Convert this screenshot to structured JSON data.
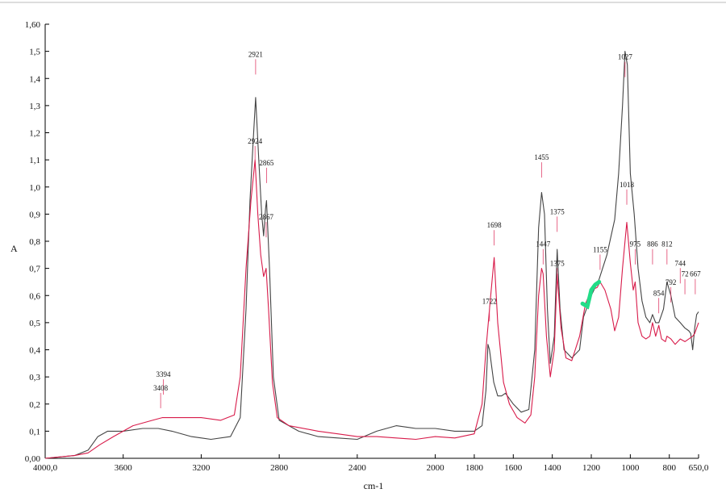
{
  "chart_data": {
    "type": "line",
    "title": "",
    "xlabel": "cm-1",
    "ylabel": "A",
    "xlim": [
      4000,
      650
    ],
    "ylim": [
      0,
      1.6
    ],
    "x_ticks": [
      {
        "value": 4000,
        "label": "4000,0"
      },
      {
        "value": 3600,
        "label": "3600"
      },
      {
        "value": 3200,
        "label": "3200"
      },
      {
        "value": 2800,
        "label": "2800"
      },
      {
        "value": 2400,
        "label": "2400"
      },
      {
        "value": 2000,
        "label": "2000"
      },
      {
        "value": 1800,
        "label": "1800"
      },
      {
        "value": 1600,
        "label": "1600"
      },
      {
        "value": 1400,
        "label": "1400"
      },
      {
        "value": 1200,
        "label": "1200"
      },
      {
        "value": 1000,
        "label": "1000"
      },
      {
        "value": 800,
        "label": "800"
      },
      {
        "value": 650,
        "label": "650,0"
      }
    ],
    "y_ticks": [
      {
        "value": 0.0,
        "label": "0,00"
      },
      {
        "value": 0.1,
        "label": "0,1"
      },
      {
        "value": 0.2,
        "label": "0,2"
      },
      {
        "value": 0.3,
        "label": "0,3"
      },
      {
        "value": 0.4,
        "label": "0,4"
      },
      {
        "value": 0.5,
        "label": "0,5"
      },
      {
        "value": 0.6,
        "label": "0,6"
      },
      {
        "value": 0.7,
        "label": "0,7"
      },
      {
        "value": 0.8,
        "label": "0,8"
      },
      {
        "value": 0.9,
        "label": "0,9"
      },
      {
        "value": 1.0,
        "label": "1,0"
      },
      {
        "value": 1.1,
        "label": "1,1"
      },
      {
        "value": 1.2,
        "label": "1,2"
      },
      {
        "value": 1.3,
        "label": "1,3"
      },
      {
        "value": 1.4,
        "label": "1,4"
      },
      {
        "value": 1.5,
        "label": "1,5"
      },
      {
        "value": 1.6,
        "label": "1,60"
      }
    ],
    "grid": false,
    "series": [
      {
        "color": "#444444",
        "points": [
          [
            4000,
            0.0
          ],
          [
            3850,
            0.01
          ],
          [
            3780,
            0.03
          ],
          [
            3730,
            0.08
          ],
          [
            3680,
            0.1
          ],
          [
            3600,
            0.1
          ],
          [
            3500,
            0.11
          ],
          [
            3420,
            0.11
          ],
          [
            3350,
            0.1
          ],
          [
            3250,
            0.08
          ],
          [
            3150,
            0.07
          ],
          [
            3050,
            0.08
          ],
          [
            3000,
            0.15
          ],
          [
            2970,
            0.55
          ],
          [
            2950,
            0.95
          ],
          [
            2935,
            1.15
          ],
          [
            2921,
            1.33
          ],
          [
            2905,
            1.1
          ],
          [
            2890,
            0.9
          ],
          [
            2880,
            0.82
          ],
          [
            2870,
            0.92
          ],
          [
            2865,
            0.95
          ],
          [
            2850,
            0.7
          ],
          [
            2830,
            0.3
          ],
          [
            2800,
            0.14
          ],
          [
            2700,
            0.1
          ],
          [
            2600,
            0.08
          ],
          [
            2500,
            0.075
          ],
          [
            2400,
            0.07
          ],
          [
            2300,
            0.1
          ],
          [
            2200,
            0.12
          ],
          [
            2100,
            0.11
          ],
          [
            2000,
            0.11
          ],
          [
            1900,
            0.1
          ],
          [
            1800,
            0.1
          ],
          [
            1760,
            0.12
          ],
          [
            1740,
            0.25
          ],
          [
            1730,
            0.42
          ],
          [
            1722,
            0.4
          ],
          [
            1700,
            0.28
          ],
          [
            1680,
            0.23
          ],
          [
            1660,
            0.23
          ],
          [
            1640,
            0.24
          ],
          [
            1600,
            0.2
          ],
          [
            1560,
            0.17
          ],
          [
            1520,
            0.18
          ],
          [
            1490,
            0.4
          ],
          [
            1470,
            0.85
          ],
          [
            1455,
            0.98
          ],
          [
            1440,
            0.9
          ],
          [
            1425,
            0.55
          ],
          [
            1410,
            0.35
          ],
          [
            1390,
            0.45
          ],
          [
            1375,
            0.77
          ],
          [
            1360,
            0.55
          ],
          [
            1340,
            0.4
          ],
          [
            1300,
            0.37
          ],
          [
            1260,
            0.4
          ],
          [
            1240,
            0.52
          ],
          [
            1200,
            0.6
          ],
          [
            1160,
            0.66
          ],
          [
            1120,
            0.75
          ],
          [
            1080,
            0.88
          ],
          [
            1060,
            1.05
          ],
          [
            1040,
            1.3
          ],
          [
            1027,
            1.5
          ],
          [
            1015,
            1.45
          ],
          [
            1000,
            1.05
          ],
          [
            980,
            0.9
          ],
          [
            960,
            0.7
          ],
          [
            940,
            0.58
          ],
          [
            920,
            0.52
          ],
          [
            900,
            0.5
          ],
          [
            886,
            0.53
          ],
          [
            870,
            0.5
          ],
          [
            854,
            0.5
          ],
          [
            830,
            0.55
          ],
          [
            812,
            0.65
          ],
          [
            792,
            0.6
          ],
          [
            770,
            0.52
          ],
          [
            744,
            0.5
          ],
          [
            720,
            0.48
          ],
          [
            700,
            0.47
          ],
          [
            690,
            0.46
          ],
          [
            680,
            0.4
          ],
          [
            670,
            0.48
          ],
          [
            660,
            0.53
          ],
          [
            650,
            0.54
          ]
        ]
      },
      {
        "color": "#d81b4a",
        "points": [
          [
            4000,
            0.0
          ],
          [
            3850,
            0.01
          ],
          [
            3780,
            0.02
          ],
          [
            3720,
            0.05
          ],
          [
            3650,
            0.08
          ],
          [
            3550,
            0.12
          ],
          [
            3450,
            0.14
          ],
          [
            3400,
            0.15
          ],
          [
            3300,
            0.15
          ],
          [
            3200,
            0.15
          ],
          [
            3100,
            0.14
          ],
          [
            3030,
            0.16
          ],
          [
            3000,
            0.3
          ],
          [
            2970,
            0.7
          ],
          [
            2945,
            0.95
          ],
          [
            2924,
            1.1
          ],
          [
            2910,
            0.9
          ],
          [
            2895,
            0.75
          ],
          [
            2880,
            0.67
          ],
          [
            2867,
            0.7
          ],
          [
            2855,
            0.55
          ],
          [
            2835,
            0.28
          ],
          [
            2810,
            0.15
          ],
          [
            2750,
            0.12
          ],
          [
            2600,
            0.1
          ],
          [
            2500,
            0.09
          ],
          [
            2400,
            0.08
          ],
          [
            2300,
            0.08
          ],
          [
            2200,
            0.075
          ],
          [
            2100,
            0.07
          ],
          [
            2000,
            0.08
          ],
          [
            1900,
            0.075
          ],
          [
            1800,
            0.09
          ],
          [
            1760,
            0.2
          ],
          [
            1740,
            0.4
          ],
          [
            1722,
            0.55
          ],
          [
            1698,
            0.74
          ],
          [
            1680,
            0.5
          ],
          [
            1650,
            0.28
          ],
          [
            1620,
            0.2
          ],
          [
            1580,
            0.15
          ],
          [
            1540,
            0.13
          ],
          [
            1510,
            0.16
          ],
          [
            1490,
            0.3
          ],
          [
            1470,
            0.6
          ],
          [
            1455,
            0.7
          ],
          [
            1447,
            0.68
          ],
          [
            1430,
            0.45
          ],
          [
            1410,
            0.3
          ],
          [
            1390,
            0.4
          ],
          [
            1375,
            0.68
          ],
          [
            1355,
            0.48
          ],
          [
            1330,
            0.37
          ],
          [
            1300,
            0.36
          ],
          [
            1260,
            0.45
          ],
          [
            1230,
            0.57
          ],
          [
            1200,
            0.62
          ],
          [
            1170,
            0.63
          ],
          [
            1155,
            0.65
          ],
          [
            1130,
            0.62
          ],
          [
            1100,
            0.55
          ],
          [
            1080,
            0.47
          ],
          [
            1060,
            0.52
          ],
          [
            1040,
            0.7
          ],
          [
            1018,
            0.87
          ],
          [
            1000,
            0.72
          ],
          [
            985,
            0.62
          ],
          [
            975,
            0.65
          ],
          [
            960,
            0.5
          ],
          [
            940,
            0.45
          ],
          [
            920,
            0.44
          ],
          [
            900,
            0.45
          ],
          [
            886,
            0.5
          ],
          [
            870,
            0.45
          ],
          [
            854,
            0.49
          ],
          [
            840,
            0.44
          ],
          [
            820,
            0.43
          ],
          [
            812,
            0.45
          ],
          [
            792,
            0.44
          ],
          [
            770,
            0.42
          ],
          [
            744,
            0.44
          ],
          [
            720,
            0.43
          ],
          [
            700,
            0.44
          ],
          [
            680,
            0.45
          ],
          [
            670,
            0.46
          ],
          [
            660,
            0.48
          ],
          [
            650,
            0.5
          ]
        ]
      }
    ],
    "highlight": {
      "color": "#22dd88",
      "points": [
        [
          1245,
          0.57
        ],
        [
          1220,
          0.56
        ],
        [
          1200,
          0.62
        ],
        [
          1180,
          0.64
        ],
        [
          1160,
          0.65
        ]
      ]
    },
    "annotations": [
      {
        "text": "2921",
        "x": 2921,
        "y": 1.48
      },
      {
        "text": "2924",
        "x": 2924,
        "y": 1.16
      },
      {
        "text": "2865",
        "x": 2865,
        "y": 1.08
      },
      {
        "text": "2867",
        "x": 2867,
        "y": 0.88
      },
      {
        "text": "3394",
        "x": 3394,
        "y": 0.3
      },
      {
        "text": "3408",
        "x": 3408,
        "y": 0.25
      },
      {
        "text": "1698",
        "x": 1698,
        "y": 0.85
      },
      {
        "text": "1722",
        "x": 1722,
        "y": 0.57
      },
      {
        "text": "1455",
        "x": 1455,
        "y": 1.1
      },
      {
        "text": "1447",
        "x": 1447,
        "y": 0.78
      },
      {
        "text": "1375",
        "x": 1375,
        "y": 0.9
      },
      {
        "text": "1375",
        "x": 1375,
        "y": 0.71
      },
      {
        "text": "1155",
        "x": 1155,
        "y": 0.76
      },
      {
        "text": "1027",
        "x": 1027,
        "y": 1.47
      },
      {
        "text": "1018",
        "x": 1018,
        "y": 1.0
      },
      {
        "text": "975",
        "x": 975,
        "y": 0.78
      },
      {
        "text": "886",
        "x": 886,
        "y": 0.78
      },
      {
        "text": "812",
        "x": 812,
        "y": 0.78
      },
      {
        "text": "854",
        "x": 854,
        "y": 0.6
      },
      {
        "text": "792",
        "x": 792,
        "y": 0.64
      },
      {
        "text": "744",
        "x": 744,
        "y": 0.71
      },
      {
        "text": "72",
        "x": 720,
        "y": 0.67
      },
      {
        "text": "667",
        "x": 667,
        "y": 0.67
      }
    ]
  }
}
